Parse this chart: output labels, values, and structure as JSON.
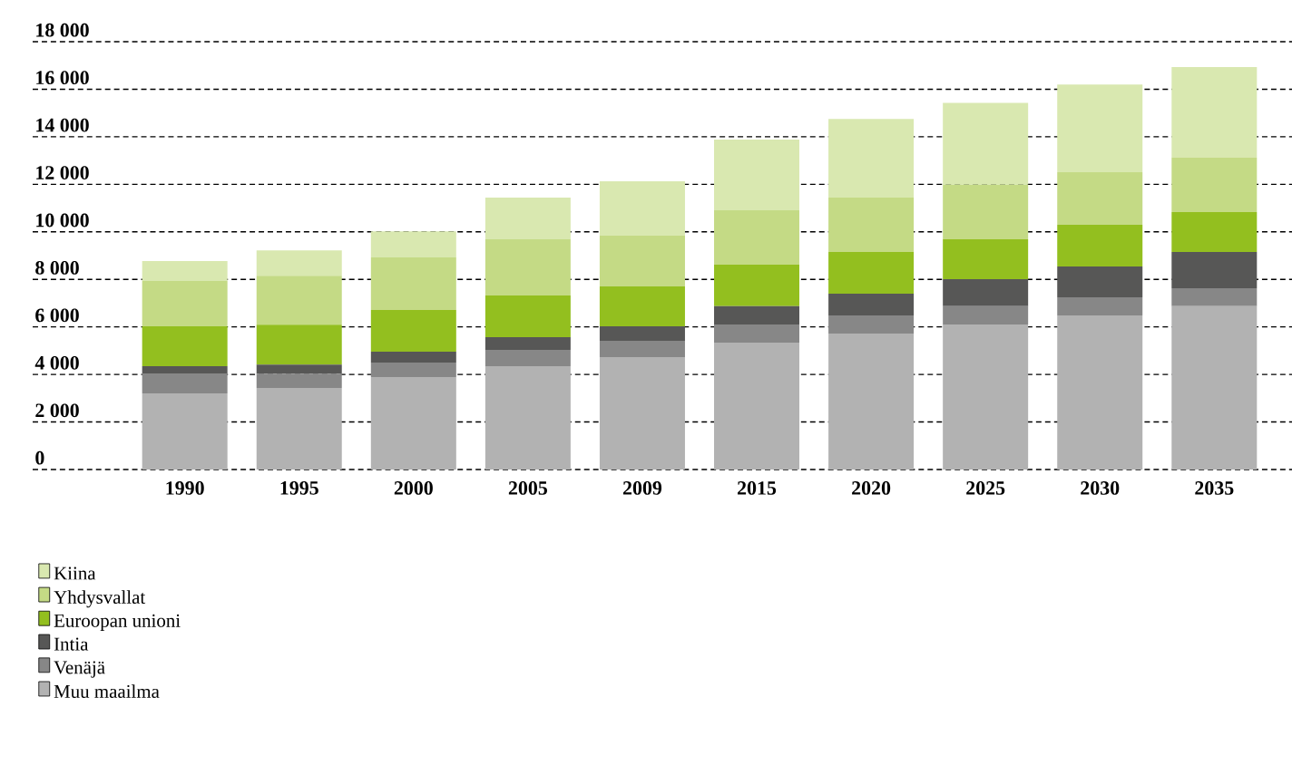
{
  "chart_data": {
    "type": "bar",
    "stacked": true,
    "grid": "y",
    "legend": "bottom left",
    "categories": [
      "1990",
      "1995",
      "2000",
      "2005",
      "2009",
      "2015",
      "2020",
      "2025",
      "2030",
      "2035"
    ],
    "ylim": [
      0,
      18000
    ],
    "yticks": [
      {
        "value": 0,
        "label": "0"
      },
      {
        "value": 2000,
        "label": "2 000"
      },
      {
        "value": 4000,
        "label": "4 000"
      },
      {
        "value": 6000,
        "label": "6 000"
      },
      {
        "value": 8000,
        "label": "8 000"
      },
      {
        "value": 10000,
        "label": "10 000"
      },
      {
        "value": 12000,
        "label": "12 000"
      },
      {
        "value": 14000,
        "label": "14 000"
      },
      {
        "value": 16000,
        "label": "16 000"
      },
      {
        "value": 18000,
        "label": "18 000"
      }
    ],
    "series": [
      {
        "name": "Muu maailma",
        "color": "#b2b2b2",
        "values": [
          3200,
          3430,
          3890,
          4350,
          4730,
          5340,
          5720,
          6100,
          6480,
          6870
        ]
      },
      {
        "name": "Venäjä",
        "color": "#878787",
        "values": [
          840,
          600,
          610,
          680,
          690,
          760,
          760,
          770,
          770,
          760
        ]
      },
      {
        "name": "Intia",
        "color": "#575756",
        "values": [
          310,
          380,
          460,
          540,
          610,
          770,
          920,
          1140,
          1290,
          1520
        ]
      },
      {
        "name": "Euroopan unioni",
        "color": "#93bf1f",
        "values": [
          1680,
          1680,
          1750,
          1750,
          1670,
          1750,
          1750,
          1680,
          1760,
          1680
        ]
      },
      {
        "name": "Yhdysvallat",
        "color": "#c4da85",
        "values": [
          1900,
          2060,
          2210,
          2370,
          2140,
          2290,
          2290,
          2290,
          2210,
          2290
        ]
      },
      {
        "name": "Kiina",
        "color": "#d9e8b0",
        "values": [
          840,
          1070,
          1100,
          1750,
          2290,
          2970,
          3310,
          3450,
          3690,
          3810
        ]
      }
    ]
  }
}
